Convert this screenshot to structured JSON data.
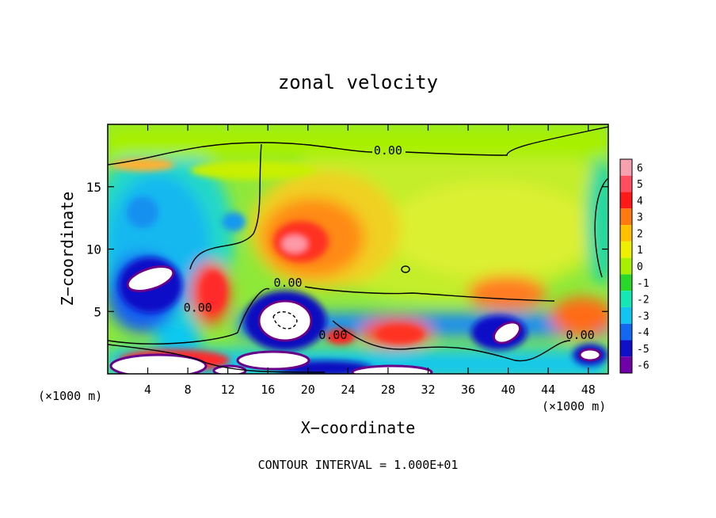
{
  "chart_data": {
    "type": "heatmap",
    "title": "zonal velocity",
    "xlabel": "X−coordinate",
    "ylabel": "Z−coordinate",
    "x_unit_left": "(×1000 m)",
    "x_unit_right": "(×1000 m)",
    "xlim": [
      0,
      50
    ],
    "ylim": [
      0,
      20
    ],
    "x_ticks": [
      4,
      8,
      12,
      16,
      20,
      24,
      28,
      32,
      36,
      40,
      44,
      48
    ],
    "y_ticks": [
      5,
      10,
      15
    ],
    "contour_labels": [
      {
        "text": "0.00",
        "x": 28,
        "y": 17.6
      },
      {
        "text": "0.00",
        "x": 18,
        "y": 7.0
      },
      {
        "text": "0.00",
        "x": 9,
        "y": 5.0
      },
      {
        "text": "0.00",
        "x": 22.5,
        "y": 2.8
      },
      {
        "text": "0.00",
        "x": 47.2,
        "y": 2.8
      }
    ],
    "colorbar": {
      "values": [
        6,
        5,
        4,
        3,
        2,
        1,
        0,
        -1,
        -2,
        -3,
        -4,
        -5,
        -6
      ],
      "colors": [
        "#f7a0b0",
        "#ff4f5f",
        "#ff1a1a",
        "#ff7a10",
        "#ffc000",
        "#eef000",
        "#a6f000",
        "#2ad82a",
        "#14e8b4",
        "#12c4f0",
        "#1468f0",
        "#1010c8",
        "#7000a8"
      ]
    },
    "footnote": "CONTOUR INTERVAL = 1.000E+01"
  }
}
